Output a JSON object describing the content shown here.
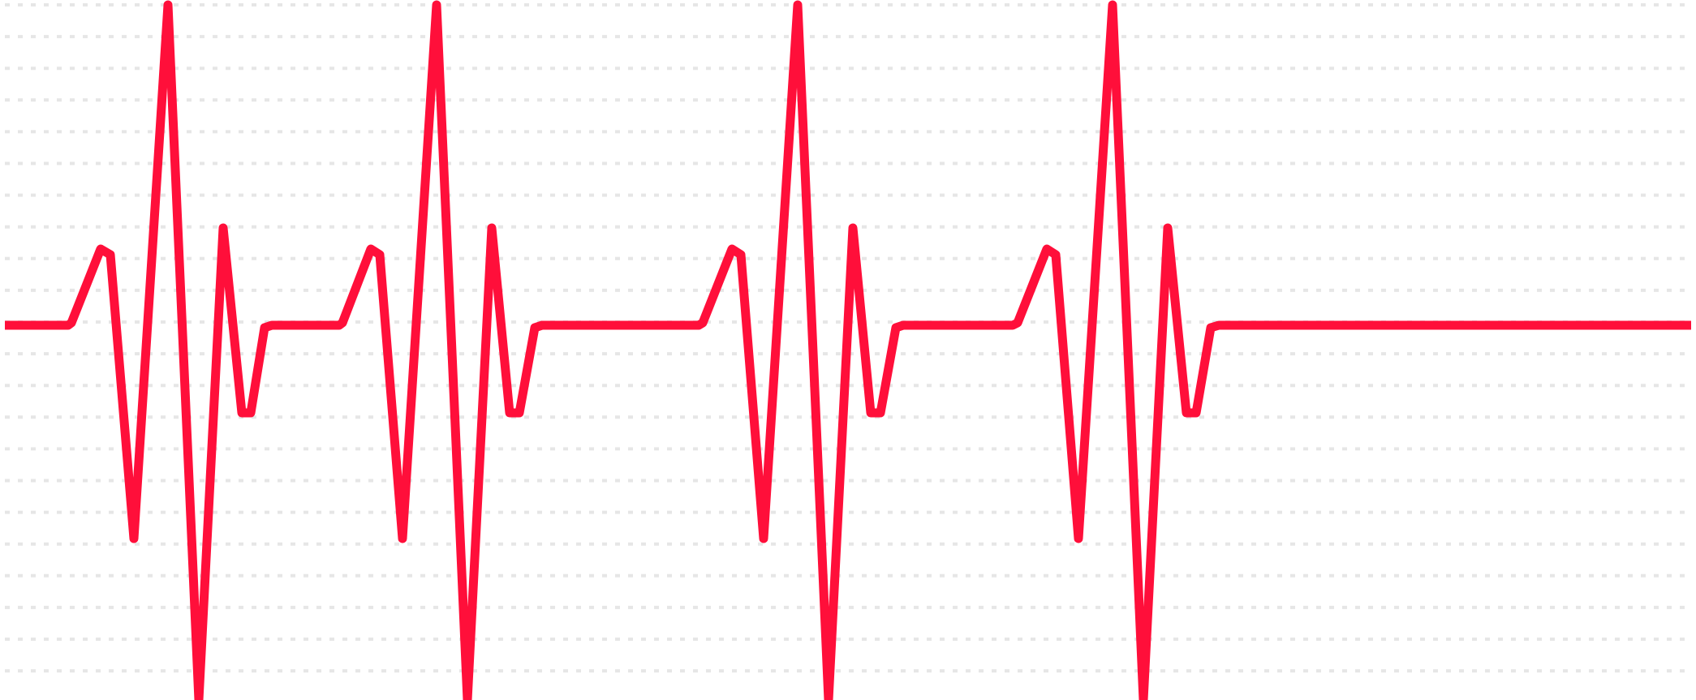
{
  "colors": {
    "background": "#ffffff",
    "trace": "#ff0f3a",
    "grid": "#e6e6e6"
  },
  "graphic": {
    "kind": "ecg-heartbeat-trace",
    "beat_count": 4,
    "grid_style": "dashed horizontal lines"
  }
}
